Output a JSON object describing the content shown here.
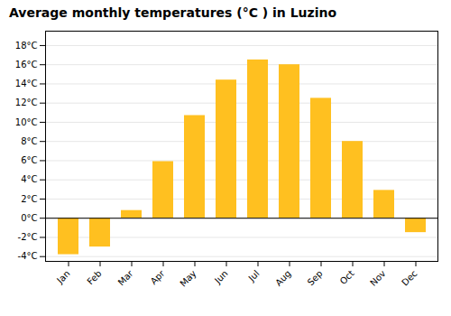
{
  "chart_data": {
    "type": "bar",
    "title": "Average monthly temperatures (°C ) in Luzino",
    "categories": [
      "Jan",
      "Feb",
      "Mar",
      "Apr",
      "May",
      "Jun",
      "Jul",
      "Aug",
      "Sep",
      "Oct",
      "Nov",
      "Dec"
    ],
    "values": [
      -3.8,
      -3.0,
      0.8,
      5.9,
      10.7,
      14.4,
      16.5,
      16.0,
      12.5,
      8.0,
      2.9,
      -1.5
    ],
    "color": "#FFC020",
    "ylim": [
      -4.5,
      19.5
    ],
    "yticks": [
      {
        "value": -4,
        "label": "-4°C"
      },
      {
        "value": -2,
        "label": "-2°C"
      },
      {
        "value": 0,
        "label": "0°C"
      },
      {
        "value": 2,
        "label": "2°C"
      },
      {
        "value": 4,
        "label": "4°C"
      },
      {
        "value": 6,
        "label": "6°C"
      },
      {
        "value": 8,
        "label": "8°C"
      },
      {
        "value": 10,
        "label": "10°C"
      },
      {
        "value": 12,
        "label": "12°C"
      },
      {
        "value": 14,
        "label": "14°C"
      },
      {
        "value": 16,
        "label": "16°C"
      },
      {
        "value": 18,
        "label": "18°C"
      }
    ],
    "grid": true
  }
}
